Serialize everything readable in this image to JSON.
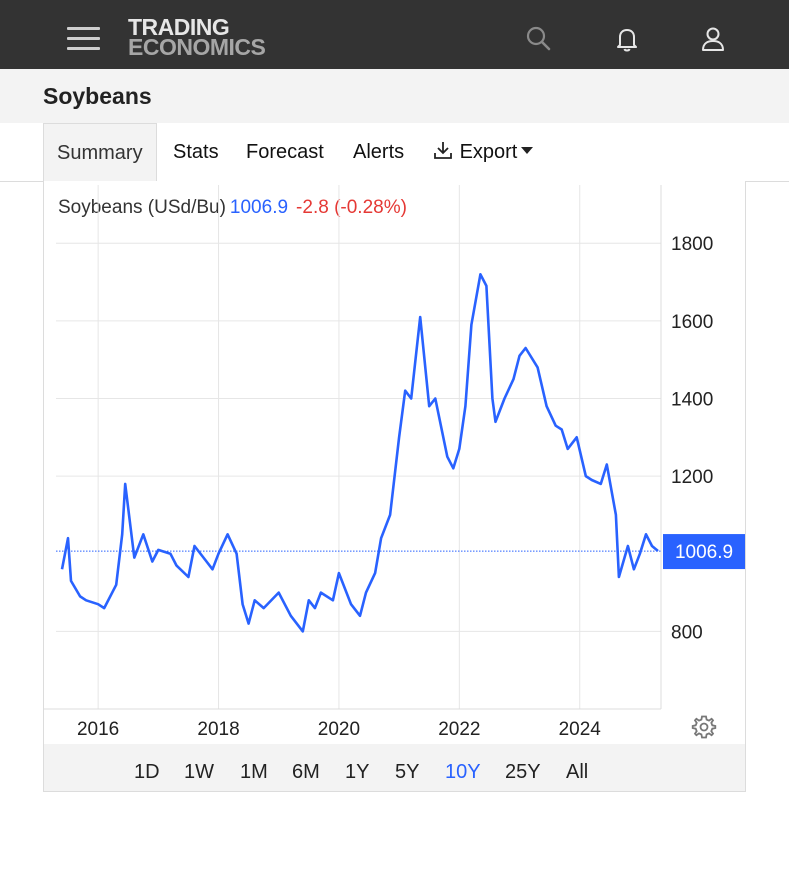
{
  "header": {
    "logo_line1": "TRADING",
    "logo_line2": "ECONOMICS",
    "icons": [
      "menu-icon",
      "search-icon",
      "bell-icon",
      "user-icon"
    ]
  },
  "page": {
    "title": "Soybeans"
  },
  "tabs": [
    {
      "label": "Summary",
      "active": true
    },
    {
      "label": "Stats"
    },
    {
      "label": "Forecast"
    },
    {
      "label": "Alerts"
    },
    {
      "label": "Export",
      "icon": "download-icon",
      "dropdown": true
    }
  ],
  "quote": {
    "name": "Soybeans (USd/Bu)",
    "price": "1006.9",
    "change": "-2.8 (-0.28%)"
  },
  "ranges": [
    {
      "label": "1D"
    },
    {
      "label": "1W"
    },
    {
      "label": "1M"
    },
    {
      "label": "6M"
    },
    {
      "label": "1Y"
    },
    {
      "label": "5Y"
    },
    {
      "label": "10Y",
      "active": true
    },
    {
      "label": "25Y"
    },
    {
      "label": "All"
    }
  ],
  "colors": {
    "line": "#2962ff",
    "negative": "#e53935",
    "header_bg": "#333333",
    "grid": "#e6e6e6"
  },
  "chart_data": {
    "type": "line",
    "series": [
      {
        "name": "Soybeans (USd/Bu)",
        "x": [
          2015.4,
          2015.5,
          2015.55,
          2015.7,
          2015.8,
          2016.0,
          2016.1,
          2016.3,
          2016.4,
          2016.45,
          2016.6,
          2016.75,
          2016.9,
          2017.0,
          2017.2,
          2017.3,
          2017.5,
          2017.6,
          2017.8,
          2017.9,
          2018.0,
          2018.15,
          2018.3,
          2018.4,
          2018.5,
          2018.6,
          2018.75,
          2019.0,
          2019.2,
          2019.4,
          2019.5,
          2019.6,
          2019.7,
          2019.9,
          2020.0,
          2020.2,
          2020.35,
          2020.45,
          2020.6,
          2020.7,
          2020.85,
          2021.0,
          2021.1,
          2021.2,
          2021.35,
          2021.5,
          2021.6,
          2021.8,
          2021.9,
          2022.0,
          2022.1,
          2022.2,
          2022.35,
          2022.45,
          2022.55,
          2022.6,
          2022.75,
          2022.9,
          2023.0,
          2023.1,
          2023.3,
          2023.45,
          2023.6,
          2023.7,
          2023.8,
          2023.95,
          2024.1,
          2024.2,
          2024.35,
          2024.45,
          2024.6,
          2024.65,
          2024.8,
          2024.9,
          2025.0,
          2025.1,
          2025.2,
          2025.3
        ],
        "y": [
          960,
          1040,
          930,
          890,
          880,
          870,
          860,
          920,
          1050,
          1180,
          990,
          1050,
          980,
          1010,
          1000,
          970,
          940,
          1020,
          980,
          960,
          1000,
          1050,
          1000,
          870,
          820,
          880,
          860,
          900,
          840,
          800,
          880,
          860,
          900,
          880,
          950,
          870,
          840,
          900,
          950,
          1040,
          1100,
          1300,
          1420,
          1400,
          1610,
          1380,
          1400,
          1250,
          1220,
          1270,
          1380,
          1590,
          1720,
          1690,
          1400,
          1340,
          1400,
          1450,
          1510,
          1530,
          1480,
          1380,
          1330,
          1320,
          1270,
          1300,
          1200,
          1190,
          1180,
          1230,
          1100,
          940,
          1020,
          960,
          1000,
          1050,
          1020,
          1007
        ]
      }
    ],
    "ylim": [
      600,
      1950
    ],
    "xlim": [
      2015.3,
      2025.35
    ],
    "yticks": [
      800,
      1200,
      1400,
      1600,
      1800
    ],
    "xticks": [
      2016,
      2018,
      2020,
      2022,
      2024
    ],
    "last_value": 1006.9,
    "last_label": "1006.9",
    "grid": true
  }
}
